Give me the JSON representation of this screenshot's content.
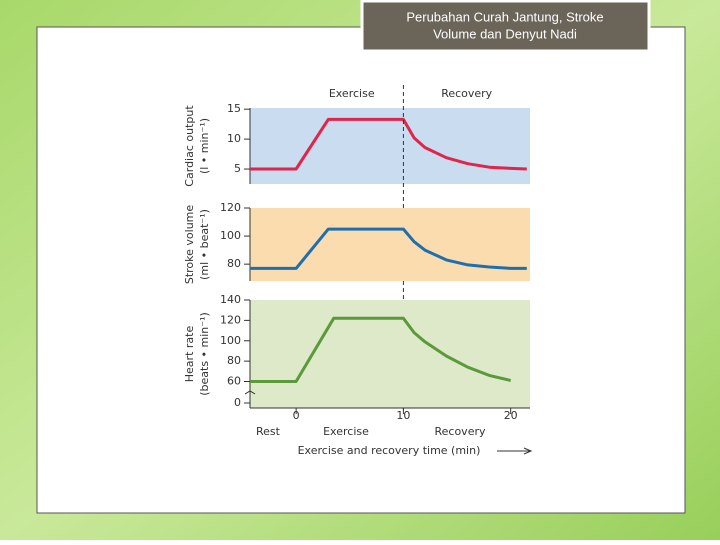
{
  "slide": {
    "title": [
      "Perubahan Curah Jantung, Stroke",
      "Volume dan Denyut Nadi"
    ]
  },
  "chart_data": [
    {
      "type": "line",
      "ylabel": [
        "Cardiac output",
        "(l • min⁻¹)"
      ],
      "header_labels": [
        "Exercise",
        "Recovery"
      ],
      "divider_x": 10,
      "background": "#c9dcf0",
      "color": "#e0254a",
      "x": [
        -4.3,
        0,
        3,
        10,
        11,
        12,
        14,
        16,
        18,
        20,
        21.5
      ],
      "values": [
        5,
        5,
        13.3,
        13.3,
        10.2,
        8.6,
        6.9,
        5.9,
        5.3,
        5.1,
        5
      ],
      "xlim": [
        -4.3,
        21.8
      ],
      "ylim": [
        2.5,
        15.2
      ],
      "yticks": [
        5,
        10,
        15
      ]
    },
    {
      "type": "line",
      "ylabel": [
        "Stroke volume",
        "(ml • beat⁻¹)"
      ],
      "background": "#fbdcae",
      "color": "#1f6fae",
      "x": [
        -4.3,
        0,
        3,
        10,
        11,
        12,
        14,
        16,
        18,
        20,
        21.5
      ],
      "values": [
        77,
        77,
        105,
        105,
        96,
        90,
        83,
        79.5,
        78,
        77,
        77
      ],
      "xlim": [
        -4.3,
        21.8
      ],
      "ylim": [
        68,
        120
      ],
      "yticks": [
        80,
        100,
        120
      ]
    },
    {
      "type": "line",
      "ylabel": [
        "Heart rate",
        "(beats • min⁻¹)"
      ],
      "background": "#dde9c9",
      "color": "#5a9a3a",
      "axis_break": true,
      "x": [
        -4.3,
        0,
        3.5,
        10,
        11,
        12,
        14,
        16,
        18,
        20
      ],
      "values": [
        60,
        60,
        122,
        122,
        108,
        99,
        85,
        74,
        66,
        61
      ],
      "xlim": [
        -4.3,
        21.8
      ],
      "ylim": [
        34,
        140
      ],
      "yticks": [
        0,
        60,
        80,
        100,
        120,
        140
      ],
      "xticks": [
        0,
        10,
        20
      ],
      "phase_labels": [
        "Rest",
        "Exercise",
        "Recovery"
      ],
      "xlabel": "Exercise and recovery time (min)"
    }
  ]
}
